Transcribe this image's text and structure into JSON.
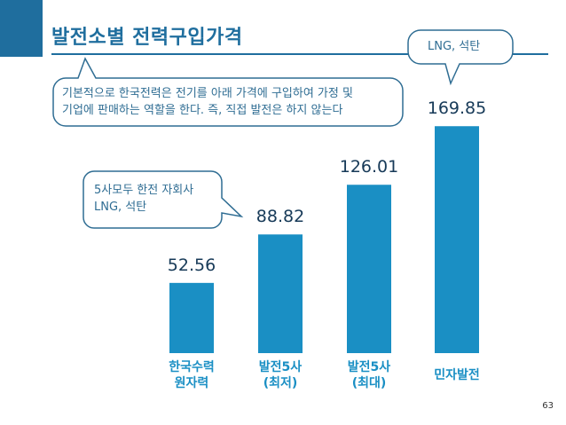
{
  "slide": {
    "title": "발전소별 전력구입가격",
    "page_number": "63"
  },
  "callouts": {
    "main": {
      "line1": "기본적으로 한국전력은 전기를 아래 가격에 구입하여 가정 및",
      "line2": "기업에 판매하는 역할을 한다. 즉, 직접 발전은 하지 않는다"
    },
    "subsidiaries": {
      "line1": "5사모두 한전 자회사",
      "line2": "LNG, 석탄"
    },
    "private": {
      "line1": "LNG, 석탄"
    }
  },
  "colors": {
    "accent": "#1f6e9e",
    "bar": "#1a8fc4",
    "value_text": "#173a58"
  },
  "chart_data": {
    "type": "bar",
    "title": "발전소별 전력구입가격",
    "categories": [
      "한국수력\n원자력",
      "발전5사\n(최저)",
      "발전5사\n(최대)",
      "민자발전"
    ],
    "values": [
      52.56,
      88.82,
      126.01,
      169.85
    ],
    "value_labels": [
      "52.56",
      "88.82",
      "126.01",
      "169.85"
    ],
    "xlabel": "",
    "ylabel": "",
    "ylim": [
      0,
      170
    ],
    "grid": false,
    "legend": "none"
  }
}
